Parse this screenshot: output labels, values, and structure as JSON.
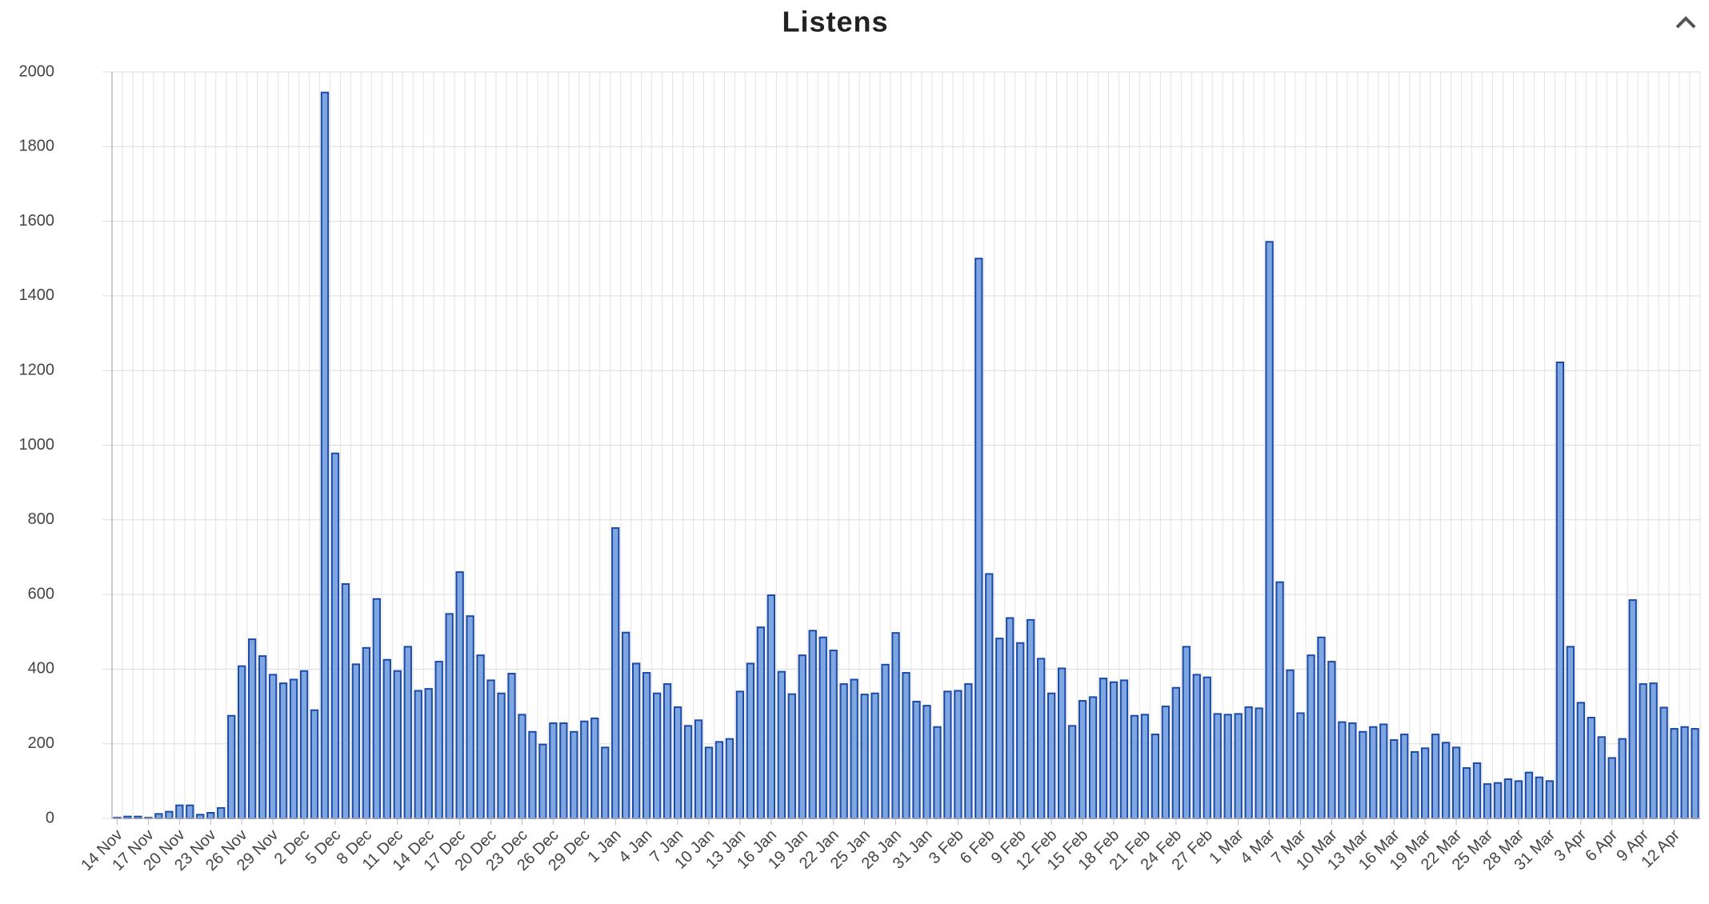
{
  "chart_data": {
    "type": "bar",
    "title": "Listens",
    "categories": [
      "14 Nov",
      null,
      null,
      "17 Nov",
      null,
      null,
      "20 Nov",
      null,
      null,
      "23 Nov",
      null,
      null,
      "26 Nov",
      null,
      null,
      "29 Nov",
      null,
      null,
      "2 Dec",
      null,
      null,
      "5 Dec",
      null,
      null,
      "8 Dec",
      null,
      null,
      "11 Dec",
      null,
      null,
      "14 Dec",
      null,
      null,
      "17 Dec",
      null,
      null,
      "20 Dec",
      null,
      null,
      "23 Dec",
      null,
      null,
      "26 Dec",
      null,
      null,
      "29 Dec",
      null,
      null,
      "1 Jan",
      null,
      null,
      "4 Jan",
      null,
      null,
      "7 Jan",
      null,
      null,
      "10 Jan",
      null,
      null,
      "13 Jan",
      null,
      null,
      "16 Jan",
      null,
      null,
      "19 Jan",
      null,
      null,
      "22 Jan",
      null,
      null,
      "25 Jan",
      null,
      null,
      "28 Jan",
      null,
      null,
      "31 Jan",
      null,
      null,
      "3 Feb",
      null,
      null,
      "6 Feb",
      null,
      null,
      "9 Feb",
      null,
      null,
      "12 Feb",
      null,
      null,
      "15 Feb",
      null,
      null,
      "18 Feb",
      null,
      null,
      "21 Feb",
      null,
      null,
      "24 Feb",
      null,
      null,
      "27 Feb",
      null,
      null,
      "1 Mar",
      null,
      null,
      "4 Mar",
      null,
      null,
      "7 Mar",
      null,
      null,
      "10 Mar",
      null,
      null,
      "13 Mar",
      null,
      null,
      "16 Mar",
      null,
      null,
      "19 Mar",
      null,
      null,
      "22 Mar",
      null,
      null,
      "25 Mar",
      null,
      null,
      "28 Mar",
      null,
      null,
      "31 Mar",
      null,
      null,
      "3 Apr",
      null,
      null,
      "6 Apr",
      null,
      null,
      "9 Apr",
      null,
      null,
      "12 Apr",
      null,
      null
    ],
    "values": [
      2,
      5,
      5,
      2,
      12,
      18,
      35,
      35,
      10,
      15,
      28,
      275,
      408,
      480,
      435,
      385,
      362,
      372,
      395,
      290,
      1945,
      978,
      628,
      413,
      457,
      588,
      425,
      395,
      460,
      342,
      347,
      420,
      548,
      660,
      542,
      437,
      370,
      335,
      388,
      278,
      232,
      198,
      255,
      255,
      232,
      260,
      268,
      190,
      778,
      498,
      415,
      390,
      335,
      360,
      298,
      248,
      263,
      190,
      205,
      213,
      340,
      415,
      512,
      598,
      393,
      333,
      437,
      503,
      485,
      450,
      360,
      372,
      332,
      335,
      412,
      497,
      390,
      313,
      302,
      245,
      340,
      342,
      360,
      1500,
      655,
      482,
      537,
      470,
      532,
      428,
      335,
      402,
      248,
      315,
      325,
      375,
      365,
      370,
      275,
      278,
      225,
      300,
      350,
      460,
      385,
      378,
      280,
      278,
      280,
      298,
      295,
      1545,
      633,
      397,
      282,
      437,
      485,
      420,
      258,
      255,
      232,
      245,
      252,
      210,
      225,
      178,
      188,
      225,
      203,
      190,
      135,
      148,
      92,
      95,
      105,
      100,
      123,
      110,
      100,
      1222,
      460,
      310,
      270,
      218,
      162,
      213,
      585,
      360,
      362,
      297,
      240,
      245,
      240
    ],
    "color": "#7ea6e0",
    "edge_color": "#1c4aa8",
    "ylim": [
      0,
      2000
    ],
    "yticks": [
      0,
      200,
      400,
      600,
      800,
      1000,
      1200,
      1400,
      1600,
      1800,
      2000
    ],
    "grid": true
  }
}
